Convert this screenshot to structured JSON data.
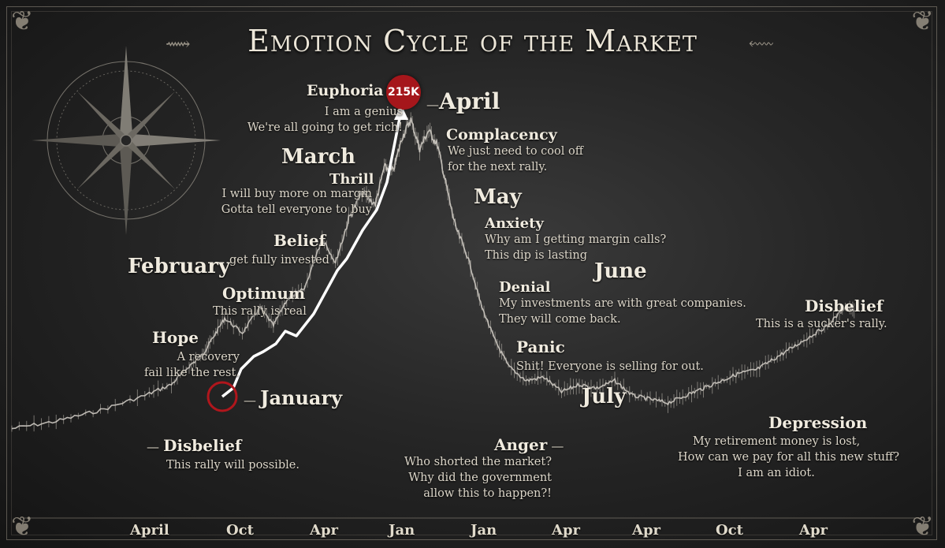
{
  "title": "Emotion Cycle of the Market",
  "peak_badge": "215K",
  "colors": {
    "arrow": "#ffffff",
    "price_line": "#d8d4cc",
    "badge": "#a5161b",
    "background": "#2a2a2a"
  },
  "icons": [
    "compass-rose-icon",
    "ornament-flourish-icon"
  ],
  "months": {
    "january": "January",
    "february": "February",
    "march": "March",
    "april": "April",
    "may": "May",
    "june": "June",
    "july": "July"
  },
  "phases": {
    "disbelief_start": {
      "name": "Disbelief",
      "text": "This rally will possible."
    },
    "hope": {
      "name": "Hope",
      "text1": "A recovery",
      "text2": "fail like the rest."
    },
    "optimum": {
      "name": "Optimum",
      "text": "This rally is real"
    },
    "belief": {
      "name": "Belief",
      "text": "get fully invested"
    },
    "thrill": {
      "name": "Thrill",
      "text1": "I will buy more on margin",
      "text2": "Gotta tell everyone to buy"
    },
    "euphoria": {
      "name": "Euphoria",
      "text1": "I am a genius",
      "text2": "We're all going to get rich!"
    },
    "complacency": {
      "name": "Complacency",
      "text1": "We just need to cool off",
      "text2": "for the next rally."
    },
    "anxiety": {
      "name": "Anxiety",
      "text1": "Why am I getting margin calls?",
      "text2": "This dip is lasting"
    },
    "denial": {
      "name": "Denial",
      "text1": "My investments are with great companies.",
      "text2": "They will come back."
    },
    "panic": {
      "name": "Panic",
      "text": "Shit! Everyone is selling for out."
    },
    "anger": {
      "name": "Anger",
      "text1": "Who shorted the market?",
      "text2": "Why did the government",
      "text3": "allow this to happen?!"
    },
    "depression": {
      "name": "Depression",
      "text1": "My retirement money is lost,",
      "text2": "How can we pay for all this new stuff?",
      "text3": "I am an idiot."
    },
    "disbelief_end": {
      "name": "Disbelief",
      "text": "This is a sucker's rally."
    }
  },
  "chart_data": {
    "type": "line",
    "title": "Emotion Cycle of the Market",
    "xlabel": "",
    "ylabel": "",
    "x_ticks": [
      "April",
      "Oct",
      "Apr",
      "Jan",
      "Jan",
      "Apr",
      "Apr",
      "Oct",
      "Apr"
    ],
    "x_range": [
      0,
      100
    ],
    "y_range": [
      0,
      100
    ],
    "grid": false,
    "series": [
      {
        "x": [
          0,
          5,
          10,
          15,
          18,
          20,
          21.5,
          22.5,
          24,
          26,
          28,
          29.5,
          31,
          33,
          35,
          36.5,
          38,
          39.5,
          41,
          42,
          43,
          44,
          45,
          46,
          47,
          48,
          49,
          50,
          51.5,
          53,
          54.5,
          56,
          58,
          60,
          62,
          64,
          66,
          68,
          70,
          72,
          74,
          76,
          78,
          80,
          82,
          84,
          86,
          88,
          90,
          92,
          94,
          95
        ],
        "y": [
          11,
          13,
          16,
          20,
          23,
          28,
          31,
          35,
          41,
          37,
          44,
          39,
          46,
          49,
          63,
          56,
          68,
          75,
          72,
          82,
          81,
          90,
          95,
          87,
          92,
          88,
          77,
          66,
          57,
          44,
          35,
          28,
          24,
          25,
          21,
          23,
          22,
          24,
          20,
          19,
          18,
          20,
          22,
          24,
          26,
          27,
          30,
          33,
          36,
          39,
          44,
          43
        ]
      }
    ],
    "annotations": [
      "215K"
    ]
  }
}
